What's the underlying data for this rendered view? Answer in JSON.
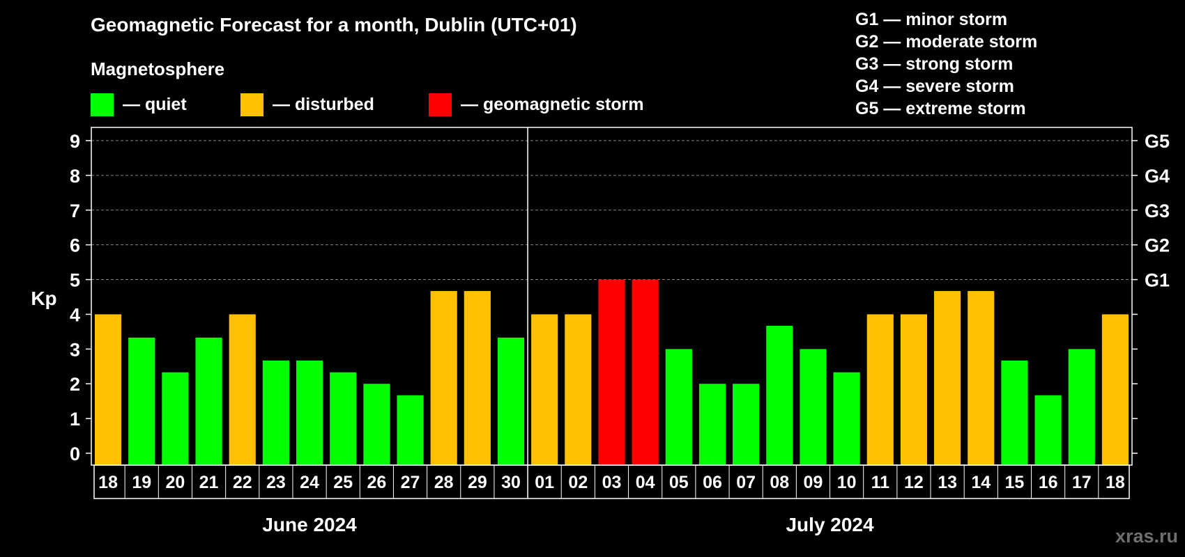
{
  "chart_data": {
    "type": "bar",
    "title": "Geomagnetic Forecast for a month, Dublin (UTC+01)",
    "subtitle": "Magnetosphere",
    "ylabel": "Kp",
    "ylim": [
      0,
      9
    ],
    "yticks": [
      "0",
      "1",
      "2",
      "3",
      "4",
      "5",
      "6",
      "7",
      "8",
      "9"
    ],
    "right_ticks": [
      {
        "kp": 5,
        "label": "G1"
      },
      {
        "kp": 6,
        "label": "G2"
      },
      {
        "kp": 7,
        "label": "G3"
      },
      {
        "kp": 8,
        "label": "G4"
      },
      {
        "kp": 9,
        "label": "G5"
      }
    ],
    "grid": "dashed horizontal at Kp 5-9",
    "categories": [
      "18",
      "19",
      "20",
      "21",
      "22",
      "23",
      "24",
      "25",
      "26",
      "27",
      "28",
      "29",
      "30",
      "01",
      "02",
      "03",
      "04",
      "05",
      "06",
      "07",
      "08",
      "09",
      "10",
      "11",
      "12",
      "13",
      "14",
      "15",
      "16",
      "17",
      "18"
    ],
    "values": [
      4,
      3.33,
      2.33,
      3.33,
      4,
      2.67,
      2.67,
      2.33,
      2,
      1.67,
      4.67,
      4.67,
      3.33,
      4,
      4,
      5,
      5,
      3,
      2,
      2,
      3.67,
      3,
      2.33,
      4,
      4,
      4.67,
      4.67,
      2.67,
      1.67,
      3,
      4
    ],
    "status": [
      "disturbed",
      "quiet",
      "quiet",
      "quiet",
      "disturbed",
      "quiet",
      "quiet",
      "quiet",
      "quiet",
      "quiet",
      "disturbed",
      "disturbed",
      "quiet",
      "disturbed",
      "disturbed",
      "storm",
      "storm",
      "quiet",
      "quiet",
      "quiet",
      "quiet",
      "quiet",
      "quiet",
      "disturbed",
      "disturbed",
      "disturbed",
      "disturbed",
      "quiet",
      "quiet",
      "quiet",
      "disturbed"
    ],
    "months": [
      {
        "label": "June 2024",
        "count": 13
      },
      {
        "label": "July 2024",
        "count": 18
      }
    ],
    "legend": [
      {
        "key": "quiet",
        "label": "— quiet",
        "color": "#00ff00"
      },
      {
        "key": "disturbed",
        "label": "— disturbed",
        "color": "#ffc000"
      },
      {
        "key": "storm",
        "label": "— geomagnetic storm",
        "color": "#ff0000"
      }
    ],
    "storm_levels": [
      "G1 — minor storm",
      "G2 — moderate storm",
      "G3 — strong storm",
      "G4 — severe storm",
      "G5 — extreme storm"
    ]
  },
  "watermark": "xras.ru"
}
